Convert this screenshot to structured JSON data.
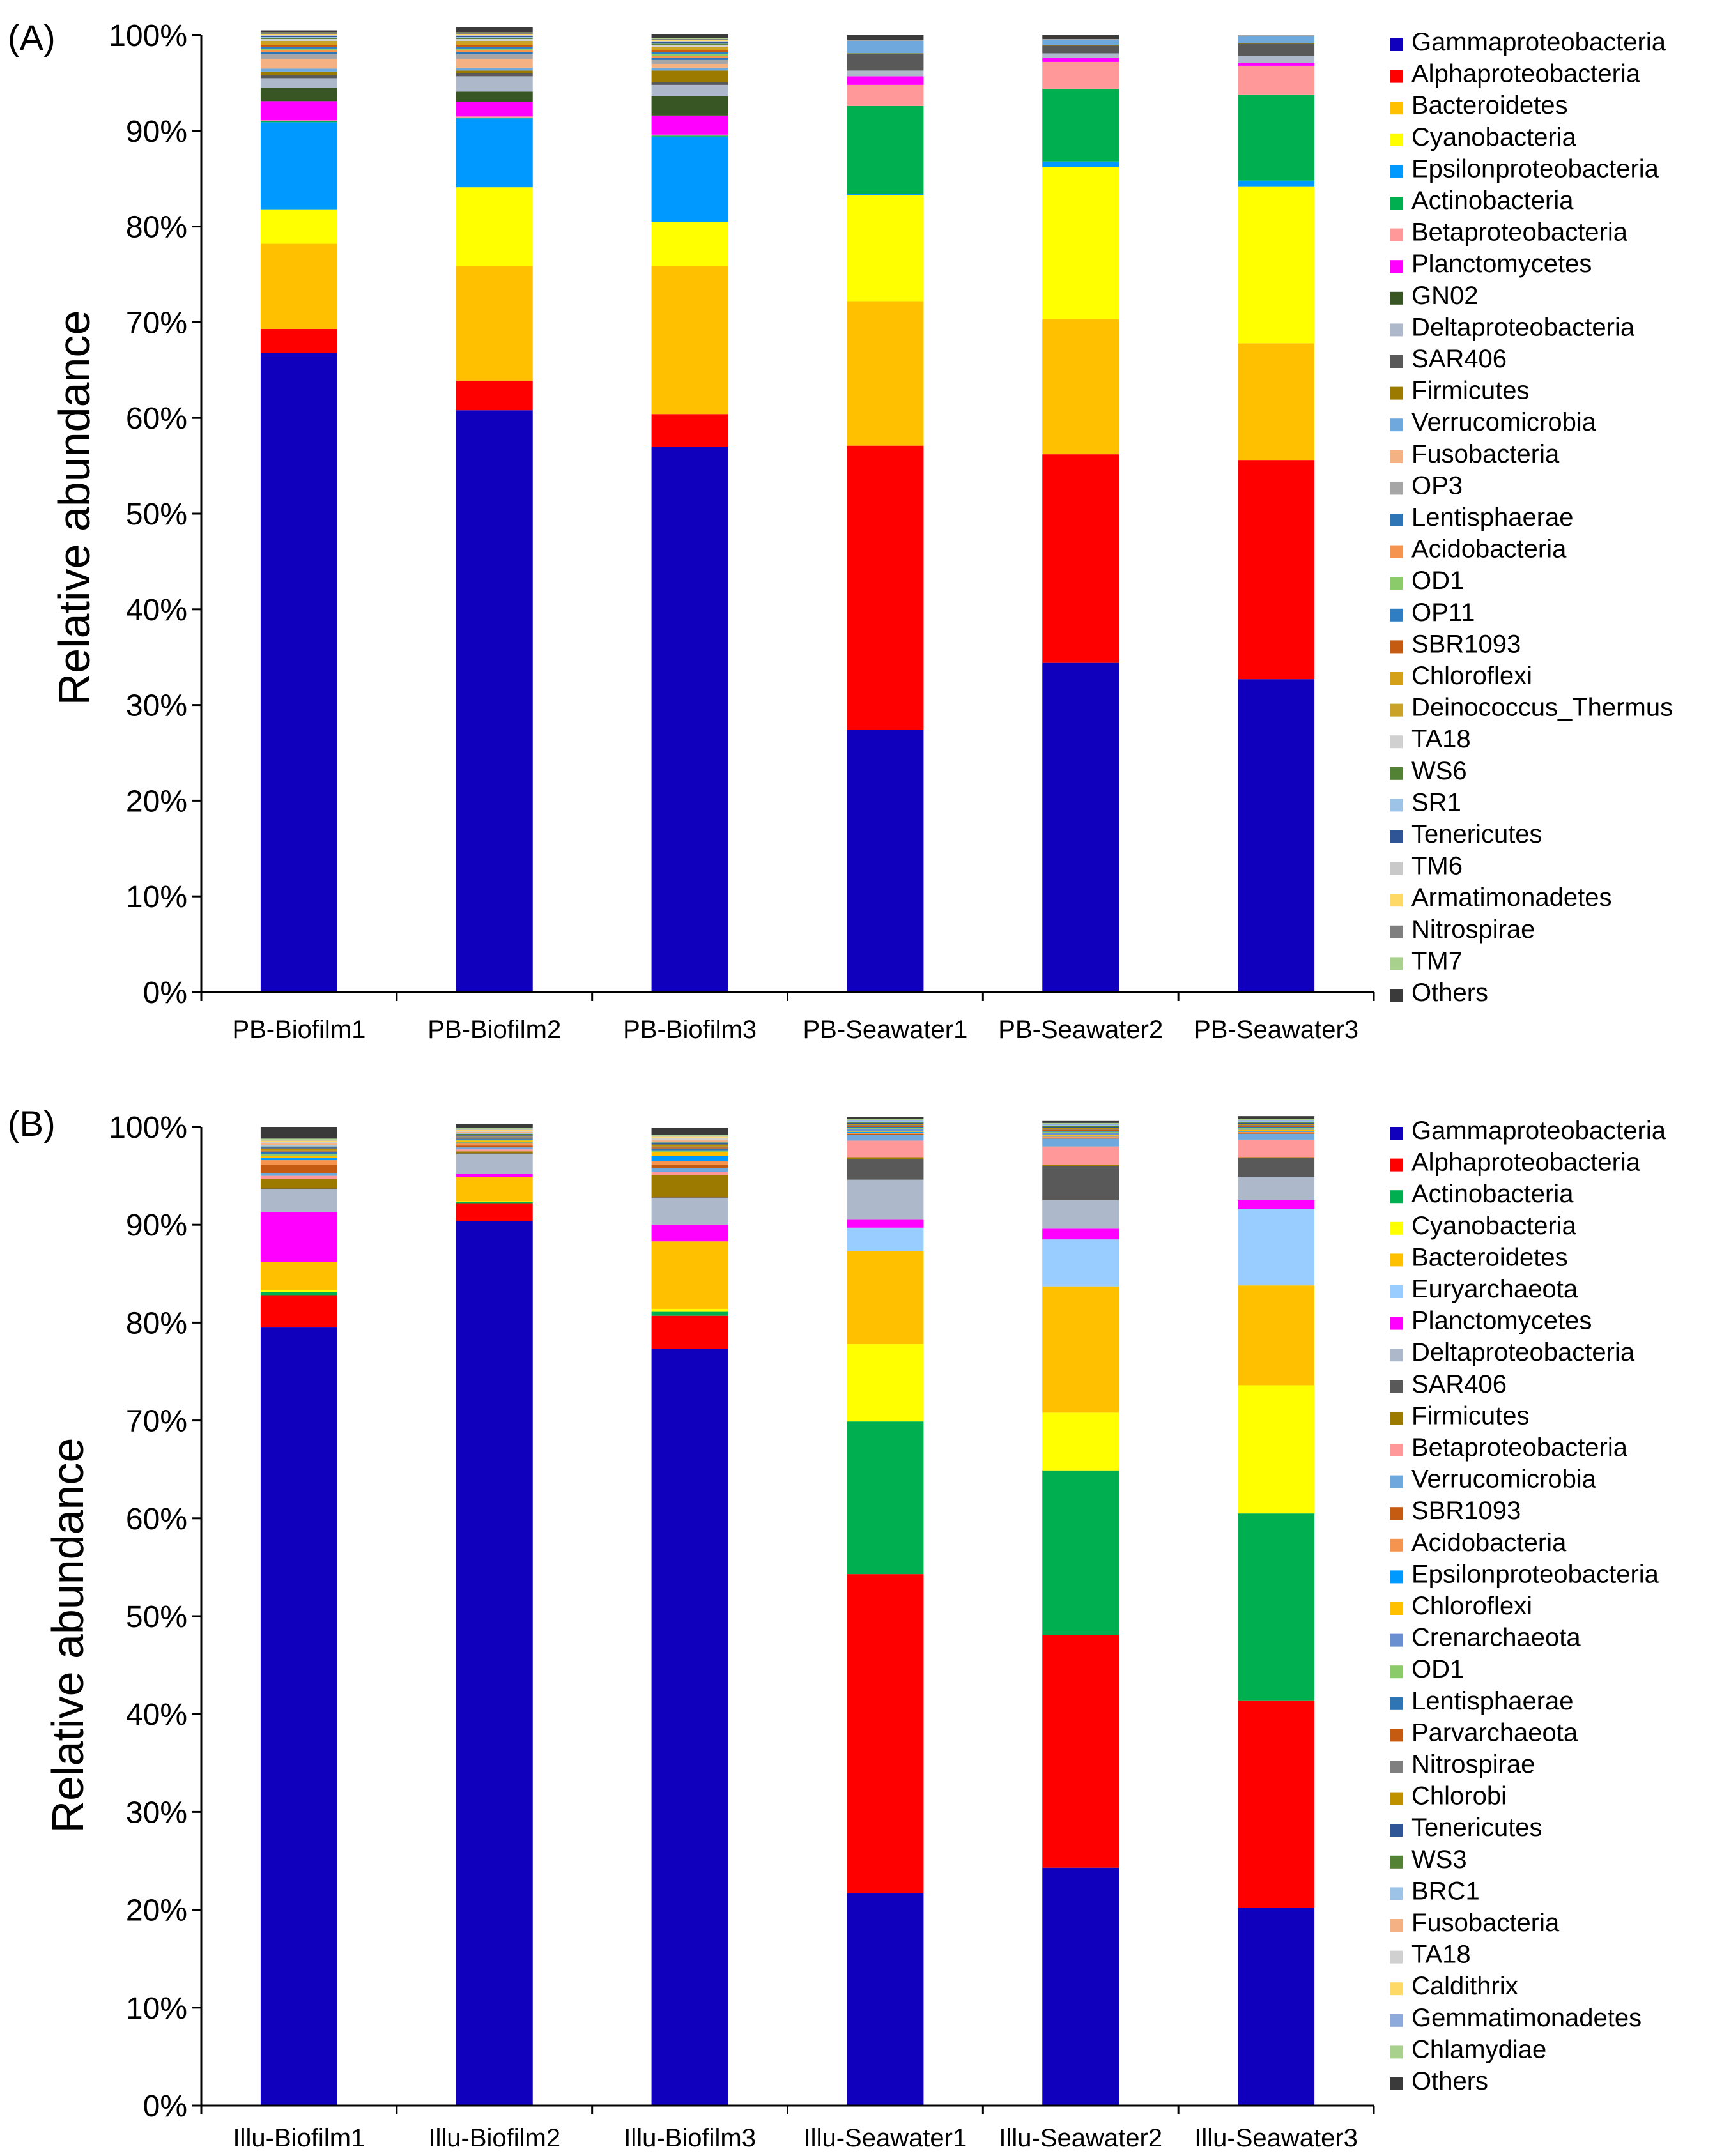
{
  "chart_data": [
    {
      "type": "bar",
      "stacked": true,
      "panel": "(A)",
      "ylabel": "Relative abundance",
      "ylim": [
        0,
        100
      ],
      "yticks": [
        "0%",
        "10%",
        "20%",
        "30%",
        "40%",
        "50%",
        "60%",
        "70%",
        "80%",
        "90%",
        "100%"
      ],
      "categories": [
        "PB-Biofilm1",
        "PB-Biofilm2",
        "PB-Biofilm3",
        "PB-Seawater1",
        "PB-Seawater2",
        "PB-Seawater3"
      ],
      "legend_position": "right",
      "series": [
        {
          "name": "Gammaproteobacteria",
          "color": "#1000BE",
          "values": [
            66.8,
            60.8,
            57.0,
            27.4,
            34.4,
            32.7
          ]
        },
        {
          "name": "Alphaproteobacteria",
          "color": "#FF0000",
          "values": [
            2.5,
            3.1,
            3.4,
            29.7,
            21.8,
            22.9
          ]
        },
        {
          "name": "Bacteroidetes",
          "color": "#FFC000",
          "values": [
            8.9,
            12.0,
            15.5,
            15.1,
            14.1,
            12.2
          ]
        },
        {
          "name": "Cyanobacteria",
          "color": "#FFFF00",
          "values": [
            3.6,
            8.2,
            4.6,
            11.1,
            15.9,
            16.4
          ]
        },
        {
          "name": "Epsilonproteobacteria",
          "color": "#0099FF",
          "values": [
            9.1,
            7.2,
            8.9,
            0.1,
            0.6,
            0.6
          ]
        },
        {
          "name": "Actinobacteria",
          "color": "#00B050",
          "values": [
            0.1,
            0.1,
            0.1,
            9.2,
            7.6,
            9.0
          ]
        },
        {
          "name": "Betaproteobacteria",
          "color": "#FF9999",
          "values": [
            0.1,
            0.1,
            0.1,
            2.2,
            2.8,
            3.0
          ]
        },
        {
          "name": "Planctomycetes",
          "color": "#FF00FF",
          "values": [
            2.0,
            1.5,
            2.0,
            0.9,
            0.4,
            0.3
          ]
        },
        {
          "name": "GN02",
          "color": "#375623",
          "values": [
            1.4,
            1.1,
            2.0,
            0,
            0,
            0
          ]
        },
        {
          "name": "Deltaproteobacteria",
          "color": "#ADB9CA",
          "values": [
            1.0,
            1.6,
            1.2,
            0.6,
            0.5,
            0.7
          ]
        },
        {
          "name": "SAR406",
          "color": "#595959",
          "values": [
            0.3,
            0.3,
            0.3,
            1.7,
            0.8,
            1.3
          ]
        },
        {
          "name": "Firmicutes",
          "color": "#9C7A00",
          "values": [
            0.4,
            0.3,
            1.2,
            0.1,
            0.1,
            0.1
          ]
        },
        {
          "name": "Verrucomicrobia",
          "color": "#6FA8DC",
          "values": [
            0.3,
            0.3,
            0.3,
            1.3,
            0.5,
            0.7
          ]
        },
        {
          "name": "Fusobacteria",
          "color": "#F4B183",
          "values": [
            1.0,
            0.9,
            0.4,
            0,
            0,
            0
          ]
        },
        {
          "name": "OP3",
          "color": "#A6A6A6",
          "values": [
            0.5,
            0.5,
            0.4,
            0.1,
            0.1,
            0.1
          ]
        },
        {
          "name": "Lentisphaerae",
          "color": "#2E75B6",
          "values": [
            0.2,
            0.2,
            0.2,
            0,
            0,
            0
          ]
        },
        {
          "name": "Acidobacteria",
          "color": "#F4944E",
          "values": [
            0.2,
            0.2,
            0.2,
            0,
            0,
            0
          ]
        },
        {
          "name": "OD1",
          "color": "#8CCB6A",
          "values": [
            0.2,
            0.2,
            0.2,
            0,
            0,
            0
          ]
        },
        {
          "name": "OP11",
          "color": "#2F7EC4",
          "values": [
            0.2,
            0.2,
            0.2,
            0,
            0,
            0
          ]
        },
        {
          "name": "SBR1093",
          "color": "#C55A11",
          "values": [
            0.2,
            0.2,
            0.2,
            0,
            0,
            0
          ]
        },
        {
          "name": "Chloroflexi",
          "color": "#D4A017",
          "values": [
            0.2,
            0.2,
            0.2,
            0,
            0,
            0
          ]
        },
        {
          "name": "Deinococcus_Thermus",
          "color": "#C9A227",
          "values": [
            0.2,
            0.2,
            0.2,
            0,
            0,
            0
          ]
        },
        {
          "name": "TA18",
          "color": "#D0D0D0",
          "values": [
            0.2,
            0.2,
            0.2,
            0,
            0,
            0
          ]
        },
        {
          "name": "WS6",
          "color": "#548235",
          "values": [
            0.1,
            0.1,
            0.1,
            0,
            0,
            0
          ]
        },
        {
          "name": "SR1",
          "color": "#9DC3E6",
          "values": [
            0.1,
            0.1,
            0.1,
            0,
            0,
            0
          ]
        },
        {
          "name": "Tenericutes",
          "color": "#2F5597",
          "values": [
            0.1,
            0.1,
            0.1,
            0,
            0,
            0
          ]
        },
        {
          "name": "TM6",
          "color": "#C9C9C9",
          "values": [
            0.1,
            0.1,
            0.1,
            0,
            0,
            0
          ]
        },
        {
          "name": "Armatimonadetes",
          "color": "#FFD966",
          "values": [
            0.1,
            0.1,
            0.1,
            0,
            0,
            0
          ]
        },
        {
          "name": "Nitrospirae",
          "color": "#7F7F7F",
          "values": [
            0.1,
            0.1,
            0.1,
            0,
            0,
            0
          ]
        },
        {
          "name": "TM7",
          "color": "#A9D18E",
          "values": [
            0.1,
            0.1,
            0.1,
            0,
            0,
            0
          ]
        },
        {
          "name": "Others",
          "color": "#3A3A3A",
          "values": [
            0.2,
            0.5,
            0.4,
            0.5,
            0.4,
            0.0
          ]
        }
      ]
    },
    {
      "type": "bar",
      "stacked": true,
      "panel": "(B)",
      "ylabel": "Relative abundance",
      "ylim": [
        0,
        100
      ],
      "yticks": [
        "0%",
        "10%",
        "20%",
        "30%",
        "40%",
        "50%",
        "60%",
        "70%",
        "80%",
        "90%",
        "100%"
      ],
      "categories": [
        "Illu-Biofilm1",
        "Illu-Biofilm2",
        "Illu-Biofilm3",
        "Illu-Seawater1",
        "Illu-Seawater2",
        "Illu-Seawater3"
      ],
      "legend_position": "right",
      "series": [
        {
          "name": "Gammaproteobacteria",
          "color": "#1000BE",
          "values": [
            79.5,
            90.4,
            77.3,
            21.7,
            24.3,
            20.2
          ]
        },
        {
          "name": "Alphaproteobacteria",
          "color": "#FF0000",
          "values": [
            3.3,
            1.8,
            3.4,
            32.6,
            23.8,
            21.2
          ]
        },
        {
          "name": "Actinobacteria",
          "color": "#00B050",
          "values": [
            0.3,
            0.1,
            0.4,
            15.6,
            16.8,
            19.1
          ]
        },
        {
          "name": "Cyanobacteria",
          "color": "#FFFF00",
          "values": [
            0.2,
            0.1,
            0.3,
            7.9,
            5.9,
            13.1
          ]
        },
        {
          "name": "Bacteroidetes",
          "color": "#FFC000",
          "values": [
            2.9,
            2.5,
            6.9,
            9.5,
            12.9,
            10.2
          ]
        },
        {
          "name": "Euryarchaeota",
          "color": "#99CCFF",
          "values": [
            0,
            0,
            0,
            2.4,
            4.8,
            7.8
          ]
        },
        {
          "name": "Planctomycetes",
          "color": "#FF00FF",
          "values": [
            5.1,
            0.3,
            1.7,
            0.8,
            1.1,
            0.9
          ]
        },
        {
          "name": "Deltaproteobacteria",
          "color": "#ADB9CA",
          "values": [
            2.3,
            2.0,
            2.7,
            4.1,
            2.9,
            2.4
          ]
        },
        {
          "name": "SAR406",
          "color": "#595959",
          "values": [
            0.1,
            0.1,
            0.1,
            2.1,
            3.5,
            1.9
          ]
        },
        {
          "name": "Firmicutes",
          "color": "#9C7A00",
          "values": [
            1.0,
            0.2,
            2.3,
            0.2,
            0.1,
            0.1
          ]
        },
        {
          "name": "Betaproteobacteria",
          "color": "#FF9999",
          "values": [
            0.3,
            0.2,
            0.3,
            1.7,
            1.9,
            1.8
          ]
        },
        {
          "name": "Verrucomicrobia",
          "color": "#6FA8DC",
          "values": [
            0.3,
            0.2,
            0.4,
            0.6,
            0.8,
            0.6
          ]
        },
        {
          "name": "SBR1093",
          "color": "#C55A11",
          "values": [
            0.8,
            0.2,
            0.3,
            0.1,
            0.1,
            0.1
          ]
        },
        {
          "name": "Acidobacteria",
          "color": "#F4944E",
          "values": [
            0.5,
            0.2,
            0.4,
            0.1,
            0.1,
            0.1
          ]
        },
        {
          "name": "Epsilonproteobacteria",
          "color": "#0099FF",
          "values": [
            0.2,
            0.1,
            0.5,
            0.1,
            0.1,
            0.1
          ]
        },
        {
          "name": "Chloroflexi",
          "color": "#FFC000",
          "values": [
            0.2,
            0.2,
            0.4,
            0.1,
            0.1,
            0.1
          ]
        },
        {
          "name": "Crenarchaeota",
          "color": "#6A8FD0",
          "values": [
            0,
            0,
            0,
            0.2,
            0.2,
            0.1
          ]
        },
        {
          "name": "OD1",
          "color": "#8CCB6A",
          "values": [
            0.2,
            0.1,
            0.2,
            0.1,
            0.1,
            0.1
          ]
        },
        {
          "name": "Lentisphaerae",
          "color": "#2E75B6",
          "values": [
            0.2,
            0.1,
            0.2,
            0.1,
            0.1,
            0.1
          ]
        },
        {
          "name": "Parvarchaeota",
          "color": "#C55A11",
          "values": [
            0.1,
            0.1,
            0.1,
            0.1,
            0.1,
            0.1
          ]
        },
        {
          "name": "Nitrospirae",
          "color": "#7F7F7F",
          "values": [
            0.1,
            0.1,
            0.1,
            0.1,
            0.1,
            0.1
          ]
        },
        {
          "name": "Chlorobi",
          "color": "#BF9000",
          "values": [
            0.2,
            0.1,
            0.2,
            0.1,
            0.1,
            0.1
          ]
        },
        {
          "name": "Tenericutes",
          "color": "#2F5597",
          "values": [
            0.1,
            0.1,
            0.1,
            0.1,
            0.1,
            0.1
          ]
        },
        {
          "name": "WS3",
          "color": "#548235",
          "values": [
            0.1,
            0.1,
            0.1,
            0.1,
            0.1,
            0.1
          ]
        },
        {
          "name": "BRC1",
          "color": "#9DC3E6",
          "values": [
            0.1,
            0.1,
            0.1,
            0.1,
            0.1,
            0.1
          ]
        },
        {
          "name": "Fusobacteria",
          "color": "#F4B183",
          "values": [
            0.2,
            0.1,
            0.2,
            0,
            0,
            0
          ]
        },
        {
          "name": "TA18",
          "color": "#D0D0D0",
          "values": [
            0.2,
            0.1,
            0.2,
            0,
            0,
            0
          ]
        },
        {
          "name": "Caldithrix",
          "color": "#FFD966",
          "values": [
            0.1,
            0.1,
            0.1,
            0,
            0,
            0
          ]
        },
        {
          "name": "Gemmatimonadetes",
          "color": "#8EA9DB",
          "values": [
            0.1,
            0.1,
            0.1,
            0.1,
            0.1,
            0.1
          ]
        },
        {
          "name": "Chlamydiae",
          "color": "#A9D18E",
          "values": [
            0.1,
            0.1,
            0.1,
            0.1,
            0.1,
            0.1
          ]
        },
        {
          "name": "Others",
          "color": "#3A3A3A",
          "values": [
            1.2,
            0.4,
            0.7,
            0.2,
            0.2,
            0.3
          ]
        }
      ]
    }
  ]
}
